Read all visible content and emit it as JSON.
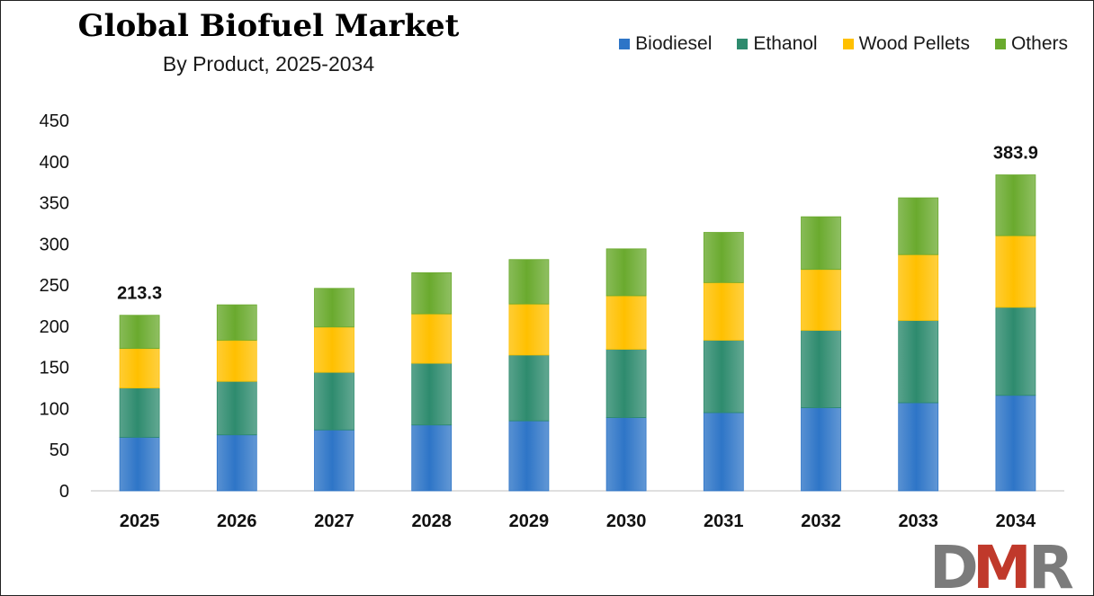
{
  "chart_data": {
    "type": "bar",
    "stacked": true,
    "title": "Global Biofuel Market",
    "subtitle": "By Product, 2025-2034",
    "categories": [
      "2025",
      "2026",
      "2027",
      "2028",
      "2029",
      "2030",
      "2031",
      "2032",
      "2033",
      "2034"
    ],
    "series": [
      {
        "name": "Biodiesel",
        "color": "#2E75C7",
        "values": [
          65,
          68,
          74,
          80,
          85,
          89,
          95,
          101,
          107,
          116
        ]
      },
      {
        "name": "Ethanol",
        "color": "#2E8B6E",
        "values": [
          60,
          65,
          70,
          75,
          80,
          83,
          88,
          94,
          100,
          107
        ]
      },
      {
        "name": "Wood Pellets",
        "color": "#FFC000",
        "values": [
          48,
          50,
          55,
          60,
          62,
          65,
          70,
          74,
          80,
          87
        ]
      },
      {
        "name": "Others",
        "color": "#6AAA2E",
        "values": [
          40.3,
          43,
          47,
          50,
          54,
          57,
          61,
          64,
          69,
          73.9
        ]
      }
    ],
    "totals_labeled": [
      {
        "category": "2025",
        "label": "213.3"
      },
      {
        "category": "2034",
        "label": "383.9"
      }
    ],
    "ylim": [
      0,
      450
    ],
    "yticks": [
      "0",
      "50",
      "100",
      "150",
      "200",
      "250",
      "300",
      "350",
      "400",
      "450"
    ],
    "grid": false,
    "legend_position": "top-right"
  },
  "logo": {
    "text": "DMR",
    "colors": [
      "#7B7B7B",
      "#C0392B"
    ]
  }
}
